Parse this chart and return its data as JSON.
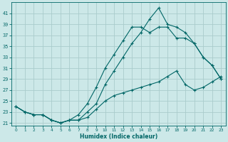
{
  "xlabel": "Humidex (Indice chaleur)",
  "background_color": "#cce8e8",
  "grid_color": "#aacccc",
  "line_color": "#006666",
  "xlim": [
    -0.5,
    23.5
  ],
  "ylim": [
    20.5,
    43
  ],
  "yticks": [
    21,
    23,
    25,
    27,
    29,
    31,
    33,
    35,
    37,
    39,
    41
  ],
  "xticks": [
    0,
    1,
    2,
    3,
    4,
    5,
    6,
    7,
    8,
    9,
    10,
    11,
    12,
    13,
    14,
    15,
    16,
    17,
    18,
    19,
    20,
    21,
    22,
    23
  ],
  "line1_x": [
    0,
    1,
    2,
    3,
    4,
    5,
    6,
    7,
    8,
    9,
    10,
    11,
    12,
    13,
    14,
    15,
    16,
    17,
    18,
    19,
    20,
    21,
    22,
    23
  ],
  "line1_y": [
    24.0,
    23.0,
    22.5,
    22.5,
    21.5,
    21.0,
    21.5,
    21.5,
    23.0,
    24.5,
    28.0,
    30.5,
    33.0,
    35.5,
    37.5,
    40.0,
    42.0,
    39.0,
    38.5,
    37.5,
    35.5,
    33.0,
    31.5,
    29.0
  ],
  "line2_x": [
    0,
    1,
    2,
    3,
    4,
    5,
    6,
    7,
    8,
    9,
    10,
    11,
    12,
    13,
    14,
    15,
    16,
    17,
    18,
    19,
    20,
    21,
    22,
    23
  ],
  "line2_y": [
    24.0,
    23.0,
    22.5,
    22.5,
    21.5,
    21.0,
    21.5,
    22.5,
    24.5,
    27.5,
    31.0,
    33.5,
    36.0,
    38.5,
    38.5,
    37.5,
    38.5,
    38.5,
    36.5,
    36.5,
    35.5,
    33.0,
    31.5,
    29.0
  ],
  "line3_x": [
    0,
    1,
    2,
    3,
    4,
    5,
    6,
    7,
    8,
    9,
    10,
    11,
    12,
    13,
    14,
    15,
    16,
    17,
    18,
    19,
    20,
    21,
    22,
    23
  ],
  "line3_y": [
    24.0,
    23.0,
    22.5,
    22.5,
    21.5,
    21.0,
    21.5,
    21.5,
    22.0,
    23.5,
    25.0,
    26.0,
    26.5,
    27.0,
    27.5,
    28.0,
    28.5,
    29.5,
    30.5,
    28.0,
    27.0,
    27.5,
    28.5,
    29.5
  ]
}
